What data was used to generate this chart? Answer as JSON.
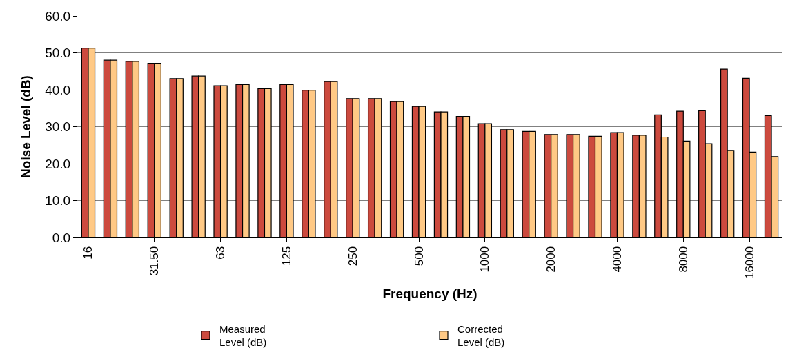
{
  "chart_data": {
    "type": "bar",
    "xlabel": "Frequency (Hz)",
    "ylabel": "Noise Level (dB)",
    "categories": [
      "16",
      null,
      null,
      "31.50",
      null,
      null,
      "63",
      null,
      null,
      "125",
      null,
      null,
      "250",
      null,
      null,
      "500",
      null,
      null,
      "1000",
      null,
      null,
      "2000",
      null,
      null,
      "4000",
      null,
      null,
      "8000",
      null,
      null,
      "16000",
      null
    ],
    "series": [
      {
        "name": "Measured Level (dB)",
        "color": "#cc4a3e",
        "values": [
          51.3,
          48.0,
          47.7,
          47.2,
          43.0,
          43.7,
          41.1,
          41.4,
          40.3,
          41.4,
          39.9,
          42.2,
          37.6,
          37.6,
          36.8,
          35.5,
          34.0,
          32.8,
          30.8,
          29.2,
          28.7,
          27.9,
          27.9,
          27.4,
          28.4,
          27.7,
          33.2,
          34.2,
          34.3,
          45.6,
          43.1,
          33.0
        ]
      },
      {
        "name": "Corrected Level (dB)",
        "color": "#ffc985",
        "values": [
          51.3,
          48.0,
          47.7,
          47.2,
          43.0,
          43.7,
          41.1,
          41.4,
          40.3,
          41.4,
          39.9,
          42.2,
          37.6,
          37.6,
          36.8,
          35.5,
          34.0,
          32.8,
          30.8,
          29.2,
          28.7,
          27.9,
          27.9,
          27.4,
          28.4,
          27.7,
          27.2,
          26.1,
          25.4,
          23.6,
          23.1,
          21.9
        ]
      }
    ],
    "ylim": [
      0,
      60
    ],
    "yticks": [
      {
        "value": 0,
        "label": "0.0"
      },
      {
        "value": 10,
        "label": "10.0"
      },
      {
        "value": 20,
        "label": "20.0"
      },
      {
        "value": 30,
        "label": "30.0"
      },
      {
        "value": 40,
        "label": "40.0"
      },
      {
        "value": 50,
        "label": "50.0"
      },
      {
        "value": 60,
        "label": "60.0"
      }
    ],
    "grid": "y",
    "legend": "bottom"
  }
}
